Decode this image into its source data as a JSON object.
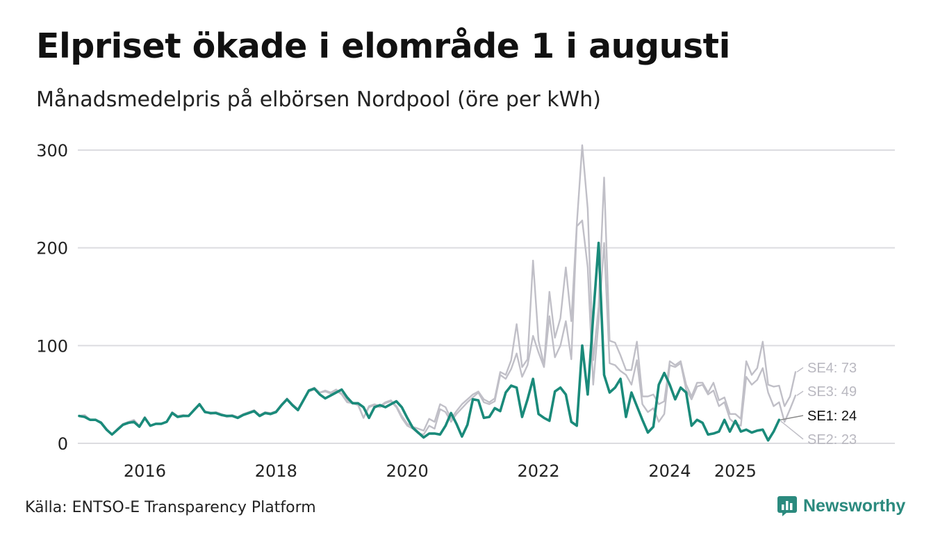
{
  "title": "Elpriset ökade i elområde 1 i augusti",
  "subtitle": "Månadsmedelpris på elbörsen Nordpool (öre per kWh)",
  "source": "Källa: ENTSO-E Transparency Platform",
  "brand": {
    "name": "Newsworthy",
    "icon": "newsworthy-logo-icon",
    "color": "#2b8a7e"
  },
  "chart_data": {
    "type": "line",
    "xlabel": "",
    "ylabel": "",
    "ylim": [
      0,
      300
    ],
    "yticks": [
      0,
      100,
      200,
      300
    ],
    "xticks": [
      {
        "label": "2016",
        "x": 2016.0
      },
      {
        "label": "2018",
        "x": 2018.0
      },
      {
        "label": "2020",
        "x": 2020.0
      },
      {
        "label": "2022",
        "x": 2022.0
      },
      {
        "label": "2024",
        "x": 2024.0
      },
      {
        "label": "2025",
        "x": 2025.0
      }
    ],
    "grid": true,
    "legend": "end-labels",
    "x_start": "2015-01",
    "x_end": "2025-08",
    "series": [
      {
        "name": "SE4",
        "label": "SE4: 73",
        "color": "#c0bfc7",
        "highlight": false,
        "values": [
          28,
          29,
          24,
          24,
          22,
          15,
          9,
          15,
          20,
          22,
          24,
          18,
          27,
          18,
          20,
          20,
          22,
          32,
          28,
          29,
          28,
          35,
          40,
          33,
          31,
          32,
          30,
          28,
          29,
          27,
          30,
          32,
          34,
          29,
          32,
          31,
          33,
          40,
          46,
          40,
          35,
          45,
          54,
          57,
          52,
          54,
          52,
          55,
          51,
          44,
          42,
          40,
          26,
          38,
          40,
          38,
          42,
          44,
          38,
          28,
          20,
          17,
          15,
          13,
          25,
          22,
          40,
          37,
          25,
          33,
          40,
          45,
          50,
          53,
          45,
          42,
          46,
          73,
          70,
          85,
          122,
          78,
          86,
          187,
          105,
          80,
          155,
          108,
          128,
          180,
          125,
          224,
          305,
          240,
          85,
          140,
          272,
          105,
          103,
          90,
          75,
          75,
          104,
          48,
          48,
          50,
          40,
          43,
          84,
          80,
          84,
          60,
          48,
          62,
          62,
          52,
          62,
          44,
          47,
          30,
          30,
          25,
          84,
          70,
          77,
          104,
          60,
          58,
          59,
          38,
          48,
          73
        ]
      },
      {
        "name": "SE3",
        "label": "SE3: 49",
        "color": "#c0bfc7",
        "highlight": false,
        "values": [
          28,
          27,
          24,
          24,
          21,
          14,
          9,
          14,
          19,
          21,
          23,
          18,
          26,
          18,
          20,
          20,
          22,
          31,
          27,
          28,
          28,
          34,
          39,
          33,
          30,
          31,
          29,
          27,
          28,
          27,
          29,
          31,
          33,
          28,
          31,
          30,
          32,
          39,
          45,
          39,
          34,
          44,
          53,
          55,
          52,
          53,
          51,
          54,
          50,
          42,
          41,
          39,
          26,
          37,
          39,
          37,
          41,
          43,
          37,
          26,
          18,
          15,
          10,
          9,
          18,
          15,
          35,
          32,
          22,
          30,
          36,
          42,
          47,
          52,
          42,
          40,
          43,
          70,
          66,
          76,
          92,
          68,
          80,
          110,
          93,
          78,
          130,
          88,
          100,
          125,
          86,
          222,
          228,
          180,
          60,
          125,
          205,
          82,
          80,
          74,
          70,
          60,
          85,
          40,
          32,
          36,
          22,
          30,
          80,
          78,
          82,
          55,
          45,
          58,
          60,
          50,
          54,
          38,
          42,
          25,
          20,
          18,
          68,
          60,
          65,
          77,
          52,
          38,
          42,
          22,
          35,
          49
        ]
      },
      {
        "name": "SE2",
        "label": "SE2: 23",
        "color": "#c0bfc7",
        "highlight": false,
        "values": [
          28,
          27,
          24,
          24,
          21,
          14,
          9,
          14,
          19,
          21,
          22,
          17,
          26,
          18,
          20,
          20,
          22,
          31,
          27,
          28,
          28,
          34,
          40,
          32,
          31,
          31,
          29,
          28,
          28,
          26,
          29,
          31,
          33,
          28,
          31,
          30,
          32,
          39,
          45,
          39,
          34,
          44,
          54,
          56,
          50,
          46,
          49,
          52,
          55,
          47,
          41,
          41,
          37,
          26,
          37,
          39,
          37,
          40,
          43,
          37,
          26,
          16,
          11,
          6,
          10,
          10,
          9,
          18,
          31,
          20,
          7,
          19,
          45,
          44,
          26,
          27,
          36,
          33,
          52,
          59,
          57,
          27,
          45,
          66,
          30,
          26,
          23,
          53,
          57,
          50,
          22,
          18,
          100,
          50,
          130,
          205,
          70,
          52,
          57,
          66,
          27,
          52,
          38,
          24,
          11,
          17,
          60,
          72,
          60,
          45,
          57,
          52,
          18,
          24,
          21,
          9,
          10,
          12,
          24,
          12,
          23,
          12,
          14,
          11,
          13,
          14,
          3,
          12,
          23
        ]
      },
      {
        "name": "SE1",
        "label": "SE1: 24",
        "color": "#1a8a7a",
        "highlight": true,
        "values": [
          28,
          27,
          24,
          24,
          21,
          14,
          9,
          14,
          19,
          21,
          22,
          17,
          26,
          18,
          20,
          20,
          22,
          31,
          27,
          28,
          28,
          34,
          40,
          32,
          31,
          31,
          29,
          28,
          28,
          26,
          29,
          31,
          33,
          28,
          31,
          30,
          32,
          39,
          45,
          39,
          34,
          44,
          54,
          56,
          50,
          46,
          49,
          52,
          55,
          47,
          41,
          41,
          37,
          26,
          37,
          39,
          37,
          40,
          43,
          37,
          26,
          16,
          11,
          6,
          10,
          10,
          9,
          18,
          31,
          20,
          7,
          19,
          45,
          44,
          26,
          27,
          36,
          33,
          52,
          59,
          57,
          27,
          45,
          66,
          30,
          26,
          23,
          53,
          57,
          50,
          22,
          18,
          100,
          50,
          130,
          205,
          70,
          52,
          57,
          66,
          27,
          52,
          38,
          24,
          11,
          17,
          60,
          72,
          60,
          45,
          57,
          52,
          18,
          24,
          21,
          9,
          10,
          12,
          24,
          12,
          23,
          12,
          14,
          11,
          13,
          14,
          3,
          12,
          24
        ]
      }
    ]
  }
}
